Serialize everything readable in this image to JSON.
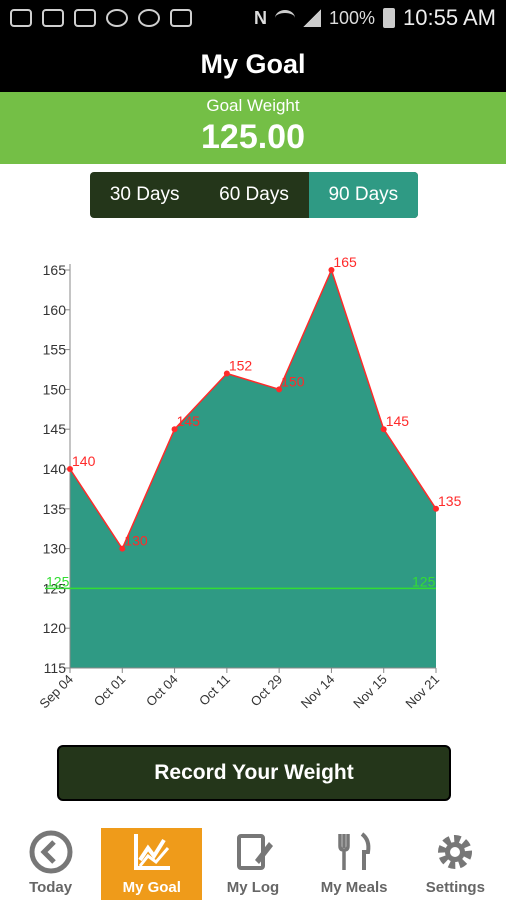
{
  "status_bar": {
    "battery": "100%",
    "time": "10:55 AM"
  },
  "header": {
    "title": "My Goal"
  },
  "goal": {
    "label": "Goal Weight",
    "value": "125.00"
  },
  "range_tabs": [
    {
      "label": "30 Days",
      "active": false
    },
    {
      "label": "60 Days",
      "active": false
    },
    {
      "label": "90 Days",
      "active": true
    }
  ],
  "chart_data": {
    "type": "area",
    "categories": [
      "Sep 04",
      "Oct 01",
      "Oct 04",
      "Oct 11",
      "Oct 29",
      "Nov 14",
      "Nov 15",
      "Nov 21"
    ],
    "series": [
      {
        "values": [
          140,
          130,
          145,
          152,
          150,
          165,
          145,
          135
        ]
      }
    ],
    "point_labels": [
      "140",
      "130",
      "145",
      "152",
      "150",
      "165",
      "145",
      "135"
    ],
    "goal_line": {
      "value": 125,
      "label": "125"
    },
    "yticks": [
      115,
      120,
      125,
      130,
      135,
      140,
      145,
      150,
      155,
      160,
      165
    ],
    "ylim": [
      115,
      165
    ],
    "grid": false,
    "colors": {
      "area": "#2f9a84",
      "line": "#ff2a2a",
      "goal": "#33dd33",
      "axis": "#888888"
    }
  },
  "record_button": {
    "label": "Record Your Weight"
  },
  "bottom_nav": [
    {
      "label": "Today",
      "icon": "back-circle-icon",
      "active": false
    },
    {
      "label": "My Goal",
      "icon": "chart-icon",
      "active": true
    },
    {
      "label": "My Log",
      "icon": "notebook-pencil-icon",
      "active": false
    },
    {
      "label": "My Meals",
      "icon": "fork-knife-icon",
      "active": false
    },
    {
      "label": "Settings",
      "icon": "gear-icon",
      "active": false
    }
  ]
}
